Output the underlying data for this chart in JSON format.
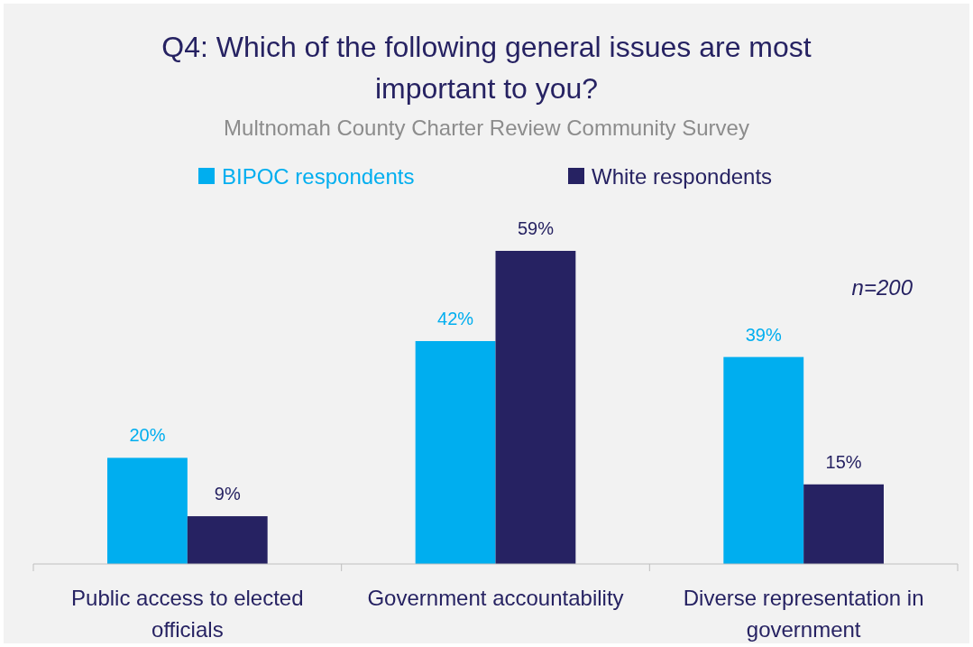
{
  "chart_data": {
    "type": "bar",
    "title": "Q4: Which of the following general issues are most important to you?",
    "subtitle": "Multnomah County Charter Review Community Survey",
    "categories": [
      "Public access to elected officials",
      "Government accountability",
      "Diverse representation in government"
    ],
    "series": [
      {
        "name": "BIPOC respondents",
        "color": "#00aeef",
        "values": [
          20,
          42,
          39
        ],
        "value_labels": [
          "20%",
          "42%",
          "39%"
        ]
      },
      {
        "name": "White respondents",
        "color": "#262262",
        "values": [
          9,
          59,
          15
        ],
        "value_labels": [
          "9%",
          "59%",
          "15%"
        ]
      }
    ],
    "legend": "top",
    "tick_labels": "x",
    "annotations": [
      "n=200"
    ]
  }
}
